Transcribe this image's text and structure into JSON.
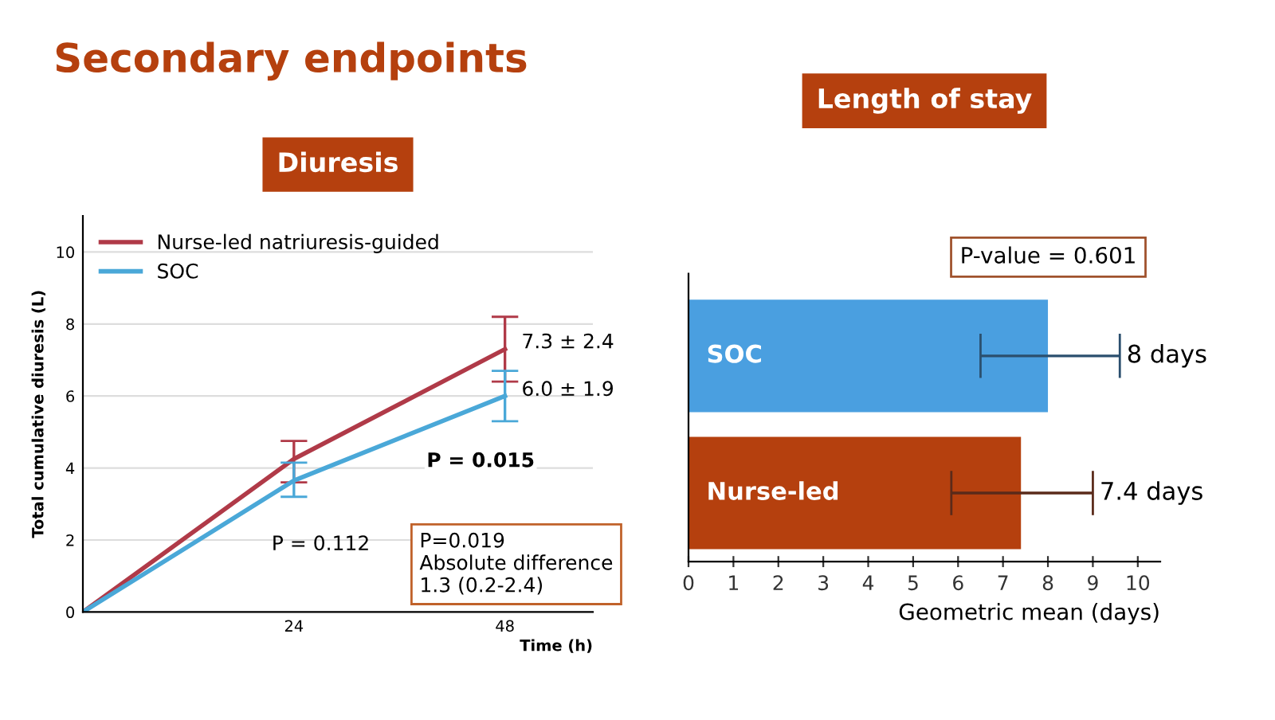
{
  "chart_data": [
    {
      "type": "line",
      "title": "Secondary endpoints",
      "subtitle": "Diuresis",
      "xlabel": "Time (h)",
      "ylabel": "Total cumulative diuresis (L)",
      "x": [
        0,
        24,
        48
      ],
      "xlim": [
        0,
        58
      ],
      "xticks": [
        24,
        48
      ],
      "ylim": [
        0,
        11
      ],
      "yticks": [
        0,
        2,
        4,
        6,
        8,
        10
      ],
      "grid": "y",
      "legend": "top left",
      "marker": "none",
      "series": [
        {
          "name": "Nurse-led natriuresis-guided",
          "color": "#b03a48",
          "values": [
            0,
            4.25,
            7.3
          ],
          "errors": [
            null,
            [
              3.6,
              4.75
            ],
            [
              6.4,
              8.2
            ]
          ]
        },
        {
          "name": "SOC",
          "color": "#4aa8d8",
          "values": [
            0,
            3.65,
            6.0
          ],
          "errors": [
            null,
            [
              3.2,
              4.15
            ],
            [
              5.3,
              6.7
            ]
          ]
        }
      ],
      "annotations": [
        "7.3 ± 2.4",
        "6.0 ± 1.9",
        "P = 0.015",
        "P = 0.112",
        "P=0.019\nAbsolute difference\n1.3 (0.2-2.4)"
      ]
    },
    {
      "type": "bar",
      "orientation": "horizontal",
      "title": "Length of stay",
      "xlabel": "Geometric mean (days)",
      "categories": [
        "SOC",
        "Nurse-led"
      ],
      "values": [
        8,
        7.4
      ],
      "colors": [
        "#4a9fe0",
        "#b5400e"
      ],
      "errors": [
        [
          6.5,
          9.6
        ],
        [
          5.85,
          9.0
        ]
      ],
      "value_labels": [
        "8 days",
        "7.4 days"
      ],
      "xlim": [
        0,
        10.5
      ],
      "xticks": [
        0,
        1,
        2,
        3,
        4,
        5,
        6,
        7,
        8,
        9,
        10
      ],
      "tick_labels": "x",
      "grid": false,
      "annotations": [
        "P-value = 0.601"
      ]
    }
  ]
}
